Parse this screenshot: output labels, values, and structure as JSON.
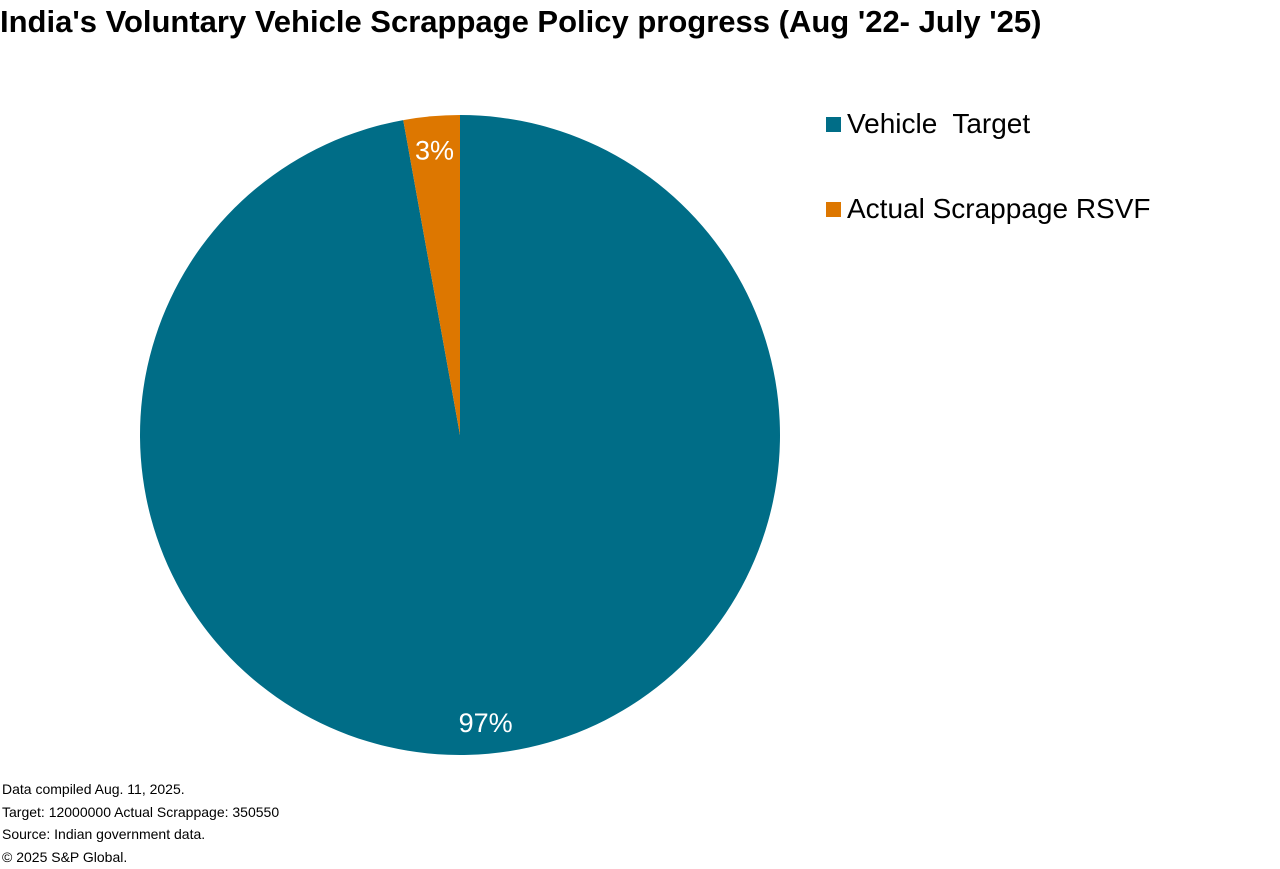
{
  "chart_data": {
    "type": "pie",
    "title": "India's Voluntary Vehicle Scrappage Policy progress (Aug '22- July '25)",
    "slices": [
      {
        "name": "Vehicle  Target",
        "value": 12000000,
        "label": "97%",
        "color": "#006D87"
      },
      {
        "name": "Actual Scrappage RSVF",
        "value": 350550,
        "label": "3%",
        "color": "#DD7700"
      }
    ],
    "legend_placement": "top-right"
  },
  "footer": {
    "lines": [
      "Data compiled Aug. 11, 2025.",
      "Target: 12000000 Actual Scrappage: 350550",
      "Source: Indian government data.",
      "© 2025 S&P Global."
    ]
  }
}
